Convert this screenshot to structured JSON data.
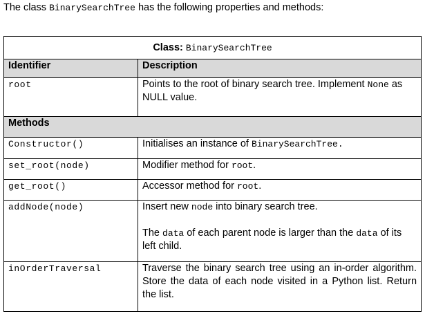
{
  "intro": {
    "prefix": "The class ",
    "class_name": "BinarySearchTree",
    "suffix": " has the following properties and methods:"
  },
  "table": {
    "title_label": "Class:",
    "title_class": "BinarySearchTree",
    "header_identifier": "Identifier",
    "header_description": "Description",
    "methods_header": "Methods",
    "root": {
      "identifier": "root",
      "desc_before": "Points to the root of binary search tree.  Implement ",
      "desc_code": "None",
      "desc_after": " as NULL value."
    },
    "constructor": {
      "identifier": "Constructor()",
      "desc_before": "Initialises an instance of ",
      "desc_code": "BinarySearchTree",
      "desc_after": "."
    },
    "set_root": {
      "identifier": "set_root(node)",
      "desc_before": "Modifier method for ",
      "desc_code": "root",
      "desc_after": "."
    },
    "get_root": {
      "identifier": "get_root()",
      "desc_before": "Accessor method for ",
      "desc_code": "root",
      "desc_after": "."
    },
    "add_node": {
      "identifier": "addNode(node)",
      "p1_before": "Insert new ",
      "p1_code": "node",
      "p1_after": " into binary search tree.",
      "p2_before": "The ",
      "p2_code1": "data",
      "p2_middle": " of each parent node is larger than the ",
      "p2_code2": "data",
      "p2_after": " of its left child."
    },
    "in_order": {
      "identifier": "inOrderTraversal",
      "desc": "Traverse the binary search tree using an in-order algorithm. Store the data of each node visited in a Python list. Return the list."
    }
  }
}
